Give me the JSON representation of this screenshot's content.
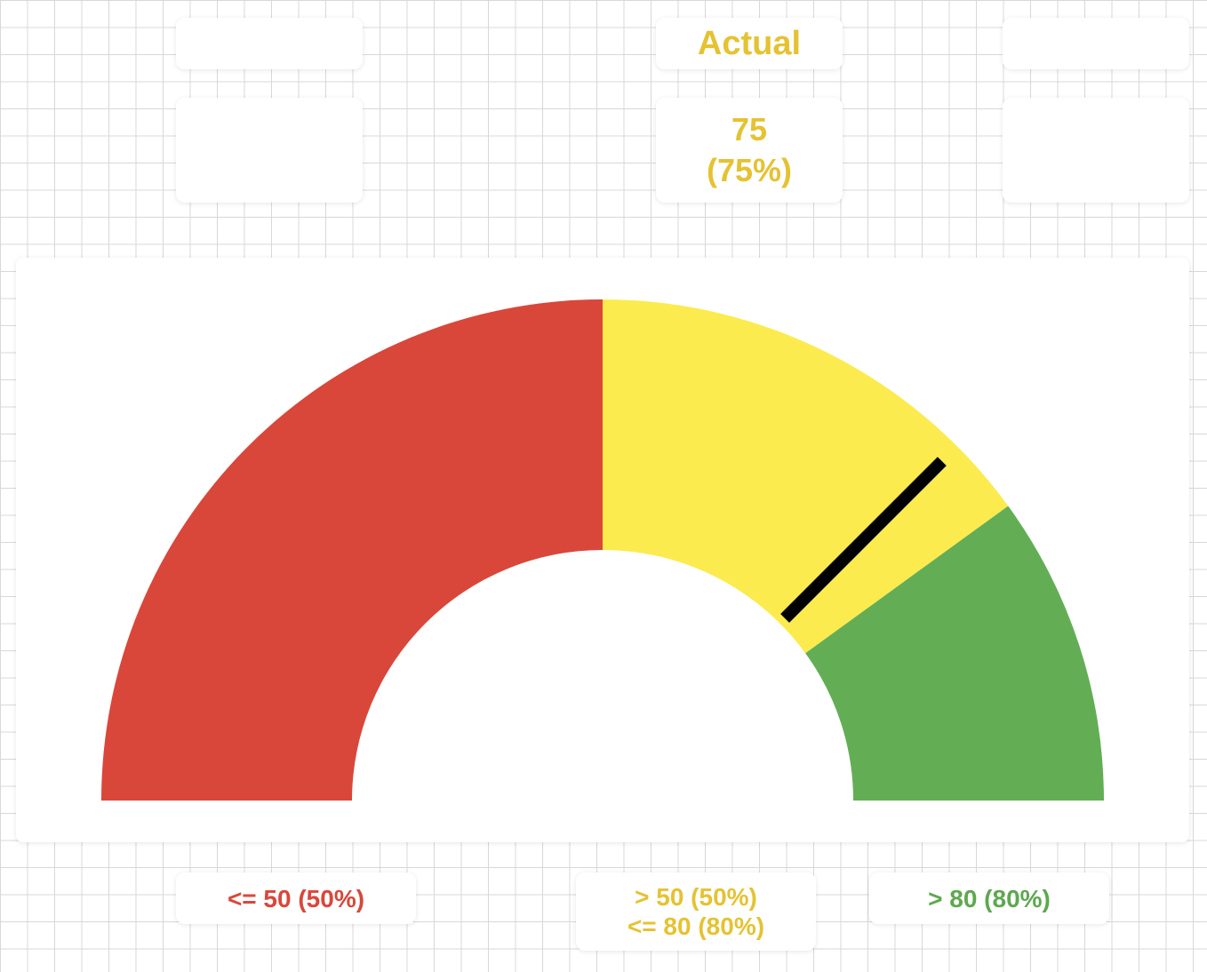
{
  "chart_data": {
    "type": "gauge",
    "title": "Actual",
    "title_color": "#e5c232",
    "value": 75,
    "value_label": "(75%)",
    "needle_color": "#000000",
    "range": [
      0,
      100
    ],
    "bands": [
      {
        "from": 0,
        "to": 50,
        "color": "#d9473a",
        "label_color": "#d9473a",
        "labels": [
          "<= 50 (50%)"
        ]
      },
      {
        "from": 50,
        "to": 80,
        "color": "#fbeb4e",
        "label_color": "#e5c232",
        "labels": [
          "> 50 (50%)",
          "<= 80 (80%)"
        ]
      },
      {
        "from": 80,
        "to": 100,
        "color": "#63ae55",
        "label_color": "#5ea850",
        "labels": [
          "> 80 (80%)"
        ]
      }
    ]
  }
}
